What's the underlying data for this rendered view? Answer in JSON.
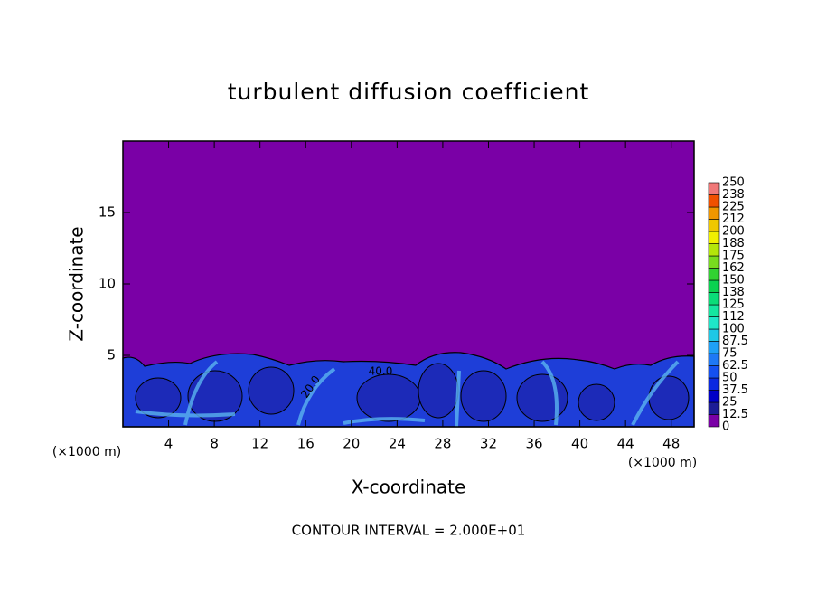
{
  "chart_data": {
    "type": "contour",
    "title": "turbulent diffusion coefficient",
    "x_label": "X-coordinate",
    "y_label": "Z-coordinate",
    "x_unit_left": "(×1000 m)",
    "x_unit_right": "(×1000 m)",
    "footnote": "CONTOUR INTERVAL = 2.000E+01",
    "contour_labels": [
      "40.0",
      "20.0"
    ],
    "xlim": [
      0,
      50
    ],
    "xticks": [
      4,
      8,
      12,
      16,
      20,
      24,
      28,
      32,
      36,
      40,
      44,
      48
    ],
    "ylim": [
      0,
      20
    ],
    "yticks": [
      5,
      10,
      15
    ],
    "colorbar": {
      "levels": [
        0,
        12.5,
        25,
        37.5,
        50,
        62.5,
        75,
        87.5,
        100,
        {
          "value": 112.5,
          "label": "112"
        },
        125,
        {
          "value": 137.5,
          "label": "138"
        },
        150,
        {
          "value": 162.5,
          "label": "162"
        },
        175,
        {
          "value": 187.5,
          "label": "188"
        },
        200,
        {
          "value": 212.5,
          "label": "212"
        },
        225,
        {
          "value": 237.5,
          "label": "238"
        },
        250
      ],
      "colors": [
        "#7a00a6",
        "#1c1c96",
        "#0000c8",
        "#0a28e0",
        "#1450f0",
        "#1e78f5",
        "#1ea0f5",
        "#1ec8e6",
        "#1ee6c8",
        "#14e6a0",
        "#0adc78",
        "#0ad250",
        "#32d232",
        "#78dc1e",
        "#b4e60a",
        "#f0f000",
        "#f0c800",
        "#f09600",
        "#f05000",
        "#f07878"
      ]
    }
  }
}
